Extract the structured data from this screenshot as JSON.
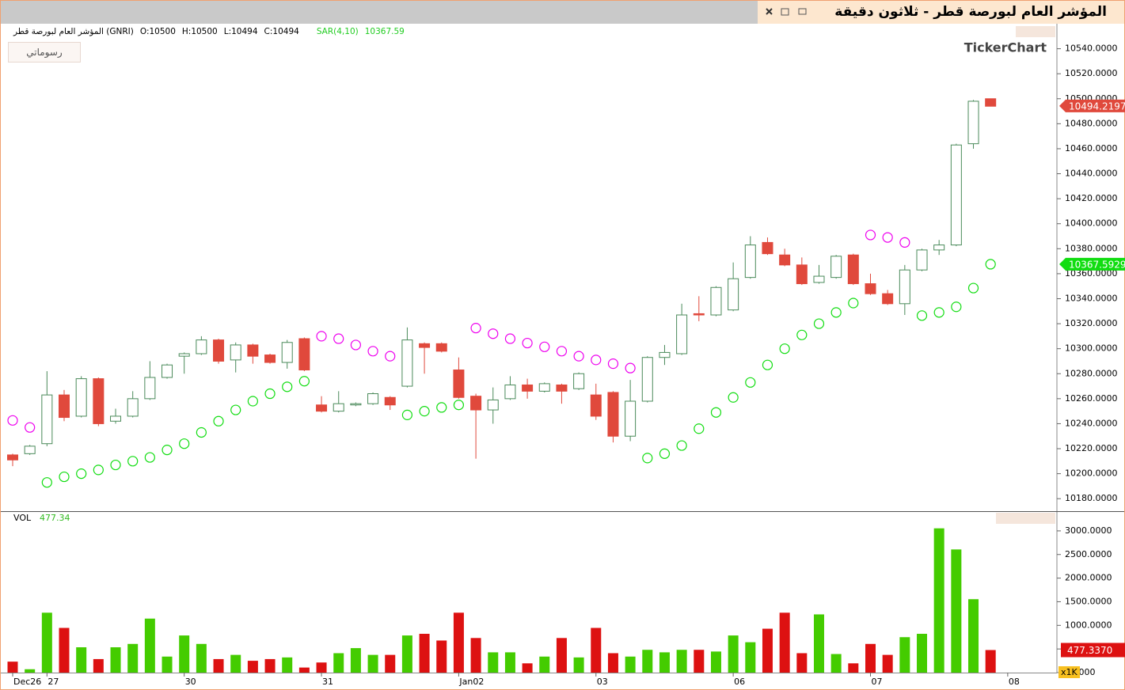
{
  "header": {
    "title": "المؤشر العام لبورصة قطر - ثلاثون دقيقة",
    "drawings": "رسوماتي",
    "logo": "TickerChart"
  },
  "chart_data": [
    {
      "type": "candlestick",
      "symbol": "المؤشر العام لبورصة قطر (GNRI)",
      "ohlc_labels": [
        "O:10500",
        "H:10500",
        "L:10494",
        "C:10494"
      ],
      "open": [
        10215,
        10216,
        10224,
        10263,
        10246,
        10276,
        10242,
        10246,
        10260,
        10277,
        10294,
        10296,
        10307,
        10291,
        10303,
        10295,
        10289,
        10308,
        10255,
        10250,
        10255,
        10256,
        10261,
        10270,
        10304,
        10304,
        10283,
        10262,
        10251,
        10260,
        10271,
        10266,
        10271,
        10268,
        10263,
        10265,
        10230,
        10258,
        10293,
        10296,
        10328,
        10327,
        10331,
        10357,
        10385,
        10375,
        10367,
        10353,
        10357,
        10375,
        10352,
        10344,
        10336,
        10363,
        10379,
        10383,
        10464,
        10500
      ],
      "high": [
        10216,
        10223,
        10282,
        10267,
        10278,
        10277,
        10252,
        10266,
        10290,
        10288,
        10297,
        10310,
        10308,
        10305,
        10304,
        10296,
        10307,
        10309,
        10262,
        10266,
        10257,
        10265,
        10262,
        10317,
        10305,
        10305,
        10293,
        10264,
        10269,
        10278,
        10276,
        10273,
        10272,
        10281,
        10272,
        10266,
        10275,
        10294,
        10303,
        10336,
        10342,
        10350,
        10369,
        10390,
        10389,
        10380,
        10373,
        10367,
        10375,
        10376,
        10360,
        10347,
        10367,
        10380,
        10387,
        10464,
        10499,
        10500
      ],
      "low": [
        10206,
        10215,
        10222,
        10242,
        10245,
        10238,
        10240,
        10245,
        10259,
        10276,
        10280,
        10295,
        10288,
        10281,
        10288,
        10288,
        10284,
        10282,
        10249,
        10249,
        10254,
        10255,
        10251,
        10269,
        10280,
        10297,
        10260,
        10212,
        10240,
        10259,
        10260,
        10265,
        10256,
        10267,
        10243,
        10225,
        10226,
        10257,
        10287,
        10295,
        10322,
        10326,
        10330,
        10356,
        10375,
        10366,
        10351,
        10352,
        10356,
        10351,
        10343,
        10335,
        10327,
        10362,
        10375,
        10382,
        10460,
        10494
      ],
      "close": [
        10211,
        10222,
        10263,
        10245,
        10276,
        10240,
        10246,
        10260,
        10277,
        10287,
        10296,
        10307,
        10290,
        10303,
        10294,
        10289,
        10305,
        10283,
        10250,
        10256,
        10256,
        10264,
        10255,
        10307,
        10301,
        10298,
        10261,
        10251,
        10259,
        10271,
        10266,
        10272,
        10266,
        10280,
        10246,
        10230,
        10258,
        10293,
        10297,
        10327,
        10327,
        10349,
        10356,
        10383,
        10376,
        10367,
        10352,
        10358,
        10374,
        10352,
        10344,
        10336,
        10363,
        10379,
        10383,
        10463,
        10498,
        10494
      ],
      "up_color": "#4a8a5a",
      "down_color": "#e0493c",
      "sar": {
        "name": "SAR(4,10)",
        "value": 10367.59,
        "above_color": "#ee00ee",
        "below_color": "#11dd11",
        "values": [
          10242.6,
          10237,
          10193,
          10197.5,
          10200,
          10203,
          10207,
          10210,
          10213,
          10219,
          10224,
          10233,
          10242,
          10251,
          10258,
          10264,
          10269.5,
          10274,
          10310,
          10308,
          10303,
          10298,
          10294,
          10247,
          10250,
          10253,
          10255,
          10316.5,
          10312,
          10308,
          10304.5,
          10301.5,
          10298,
          10294,
          10291,
          10288,
          10284.5,
          10212.5,
          10216,
          10222.5,
          10236,
          10249,
          10261,
          10273,
          10287,
          10300,
          10311,
          10320,
          10329,
          10336.5,
          10391,
          10389,
          10385,
          10326.5,
          10329,
          10333.5,
          10348.5,
          10367.59
        ]
      },
      "last_price": 10494.2197,
      "last_sar": 10367.5929,
      "ylim": [
        10170,
        10560
      ],
      "yticks": [
        {
          "value": 10180,
          "label": "10180.0000"
        },
        {
          "value": 10200,
          "label": "10200.0000"
        },
        {
          "value": 10220,
          "label": "10220.0000"
        },
        {
          "value": 10240,
          "label": "10240.0000"
        },
        {
          "value": 10260,
          "label": "10260.0000"
        },
        {
          "value": 10280,
          "label": "10280.0000"
        },
        {
          "value": 10300,
          "label": "10300.0000"
        },
        {
          "value": 10320,
          "label": "10320.0000"
        },
        {
          "value": 10340,
          "label": "10340.0000"
        },
        {
          "value": 10360,
          "label": "10360.0000"
        },
        {
          "value": 10380,
          "label": "10380.0000"
        },
        {
          "value": 10400,
          "label": "10400.0000"
        },
        {
          "value": 10420,
          "label": "10420.0000"
        },
        {
          "value": 10440,
          "label": "10440.0000"
        },
        {
          "value": 10460,
          "label": "10460.0000"
        },
        {
          "value": 10480,
          "label": "10480.0000"
        },
        {
          "value": 10500,
          "label": "10500.0000"
        },
        {
          "value": 10520,
          "label": "10520.0000"
        },
        {
          "value": 10540,
          "label": "10540.0000"
        }
      ]
    },
    {
      "type": "volume",
      "name": "VOL",
      "value": 477.34,
      "values": [
        232,
        71,
        1268,
        946,
        536,
        286,
        536,
        607,
        1143,
        339,
        786,
        607,
        286,
        375,
        250,
        286,
        321,
        107,
        214,
        411,
        518,
        375,
        375,
        786,
        821,
        679,
        1268,
        732,
        429,
        429,
        196,
        339,
        732,
        321,
        946,
        411,
        339,
        482,
        429,
        482,
        482,
        446,
        786,
        643,
        929,
        1268,
        411,
        1232,
        393,
        196,
        607,
        375,
        750,
        821,
        3054,
        2607,
        1554,
        477.34
      ],
      "up_color": "#44cc00",
      "down_color": "#dd1111",
      "last": {
        "value": 477.337,
        "label": "477.3370"
      },
      "unit": "x1K",
      "ylim": [
        0,
        3300
      ],
      "yticks": [
        {
          "value": 0,
          "label": "0.0000"
        },
        {
          "value": 500,
          "label": "500.0000"
        },
        {
          "value": 1000,
          "label": "1000.0000"
        },
        {
          "value": 1500,
          "label": "1500.0000"
        },
        {
          "value": 2000,
          "label": "2000.0000"
        },
        {
          "value": 2500,
          "label": "2500.0000"
        },
        {
          "value": 3000,
          "label": "3000.0000"
        }
      ],
      "xticks": [
        {
          "value": 0,
          "label": "Dec26"
        },
        {
          "value": 2,
          "label": "27"
        },
        {
          "value": 10,
          "label": "30"
        },
        {
          "value": 18,
          "label": "31"
        },
        {
          "value": 26,
          "label": "Jan02"
        },
        {
          "value": 34,
          "label": "03"
        },
        {
          "value": 42,
          "label": "06"
        },
        {
          "value": 50,
          "label": "07"
        },
        {
          "value": 58,
          "label": "08"
        }
      ]
    }
  ]
}
